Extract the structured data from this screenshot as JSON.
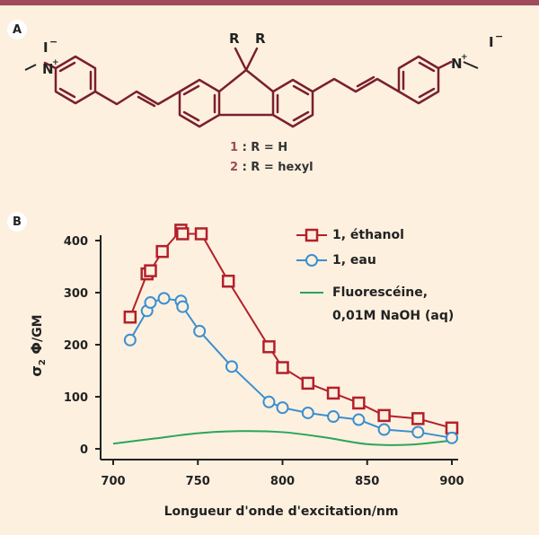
{
  "panel_labels": {
    "a": "A",
    "b": "B"
  },
  "structure": {
    "r_top_left": "R",
    "r_top_right": "R",
    "iodide_left": "I",
    "iodide_right": "I",
    "nitrogen_left": "N",
    "nitrogen_right": "N",
    "compounds": [
      {
        "number": "1",
        "text": " : R = H"
      },
      {
        "number": "2",
        "text": " : R = hexyl"
      }
    ]
  },
  "colors": {
    "ethanol": "#b3202a",
    "eau": "#3a8fd0",
    "fluoresceine": "#2aa55a",
    "accent": "#a04a5a"
  },
  "chart_data": {
    "type": "line",
    "xlabel": "Longueur d'onde d'excitation/nm",
    "ylabel_parts": [
      "σ",
      "2",
      " Φ",
      "/GM"
    ],
    "xlim": [
      700,
      900
    ],
    "ylim": [
      0,
      400
    ],
    "xticks": [
      700,
      750,
      800,
      850,
      900
    ],
    "yticks": [
      0,
      100,
      200,
      300,
      400
    ],
    "series": [
      {
        "name": "1, éthanol",
        "marker": "square",
        "x": [
          710,
          720,
          722,
          729,
          740,
          741,
          752,
          768,
          792,
          800,
          815,
          830,
          845,
          860,
          880,
          900
        ],
        "y": [
          253,
          336,
          342,
          379,
          420,
          413,
          413,
          322,
          196,
          156,
          126,
          107,
          88,
          64,
          58,
          40
        ]
      },
      {
        "name": "1, eau",
        "marker": "circle",
        "x": [
          710,
          720,
          722,
          730,
          740,
          741,
          751,
          770,
          792,
          800,
          815,
          830,
          845,
          860,
          880,
          900
        ],
        "y": [
          209,
          265,
          281,
          289,
          284,
          273,
          226,
          158,
          90,
          79,
          69,
          62,
          56,
          37,
          32,
          21
        ]
      },
      {
        "name_lines": [
          "Fluorescéine,",
          "0,01M NaOH (aq)"
        ],
        "marker": "none",
        "x": [
          700,
          725,
          750,
          775,
          800,
          825,
          850,
          875,
          900
        ],
        "y": [
          10,
          20,
          30,
          34,
          32,
          22,
          9,
          8,
          16
        ]
      }
    ]
  }
}
